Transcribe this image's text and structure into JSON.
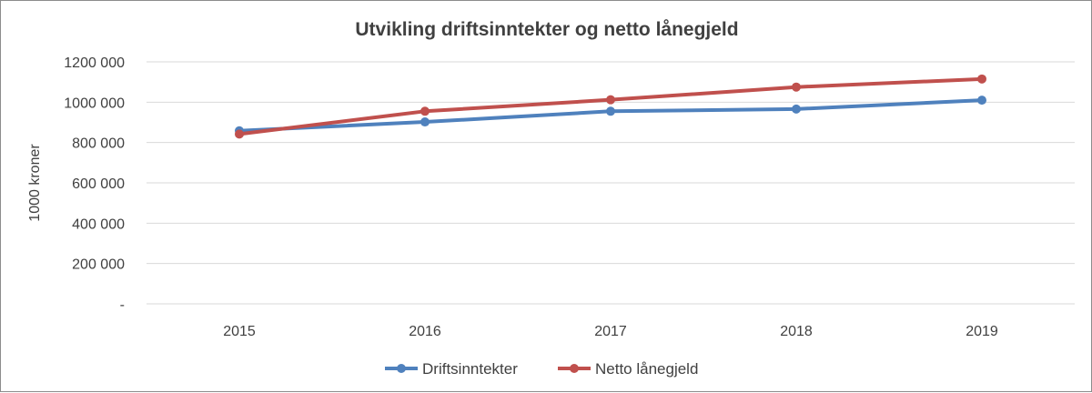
{
  "chart_data": {
    "type": "line",
    "title": "Utvikling driftsinntekter og netto lånegjeld",
    "ylabel": "1000 kroner",
    "xlabel": "",
    "categories": [
      "2015",
      "2016",
      "2017",
      "2018",
      "2019"
    ],
    "ylim": [
      0,
      1200000
    ],
    "yticks": [
      0,
      200000,
      400000,
      600000,
      800000,
      1000000,
      1200000
    ],
    "ytick_labels": [
      "-",
      "200 000",
      "400 000",
      "600 000",
      "800 000",
      "1000 000",
      "1200 000"
    ],
    "grid": true,
    "legend_position": "bottom",
    "series": [
      {
        "name": "Driftsinntekter",
        "color": "#4f81bd",
        "values": [
          858000,
          902000,
          955000,
          966000,
          1010000
        ]
      },
      {
        "name": "Netto lånegjeld",
        "color": "#c0504d",
        "values": [
          842000,
          955000,
          1012000,
          1075000,
          1115000
        ]
      }
    ]
  }
}
